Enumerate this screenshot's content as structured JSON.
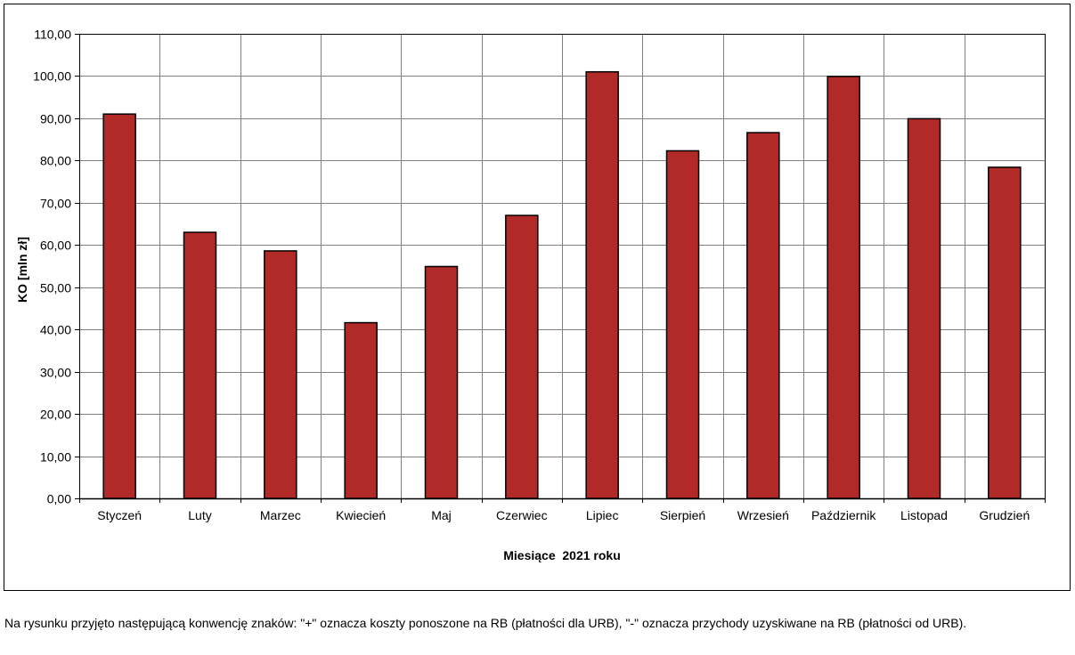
{
  "chart_data": {
    "type": "bar",
    "categories": [
      "Styczeń",
      "Luty",
      "Marzec",
      "Kwiecień",
      "Maj",
      "Czerwiec",
      "Lipiec",
      "Sierpień",
      "Wrzesień",
      "Październik",
      "Listopad",
      "Grudzień"
    ],
    "values": [
      91.0,
      63.0,
      58.6,
      41.6,
      54.9,
      67.0,
      101.0,
      82.3,
      86.6,
      99.9,
      89.9,
      78.4
    ],
    "xlabel": "Miesiące  2021 roku",
    "ylabel": "KO [mln zł]",
    "ylim": [
      0,
      110
    ],
    "yticks": [
      "0,00",
      "10,00",
      "20,00",
      "30,00",
      "40,00",
      "50,00",
      "60,00",
      "70,00",
      "80,00",
      "90,00",
      "100,00",
      "110,00"
    ],
    "grid": true,
    "legend": "none",
    "bar_color": "#b22a27"
  },
  "footnote": "Na rysunku przyjęto następującą konwencję znaków: \"+\" oznacza koszty ponoszone na RB (płatności dla URB), \"-\" oznacza przychody uzyskiwane na RB (płatności od URB)."
}
